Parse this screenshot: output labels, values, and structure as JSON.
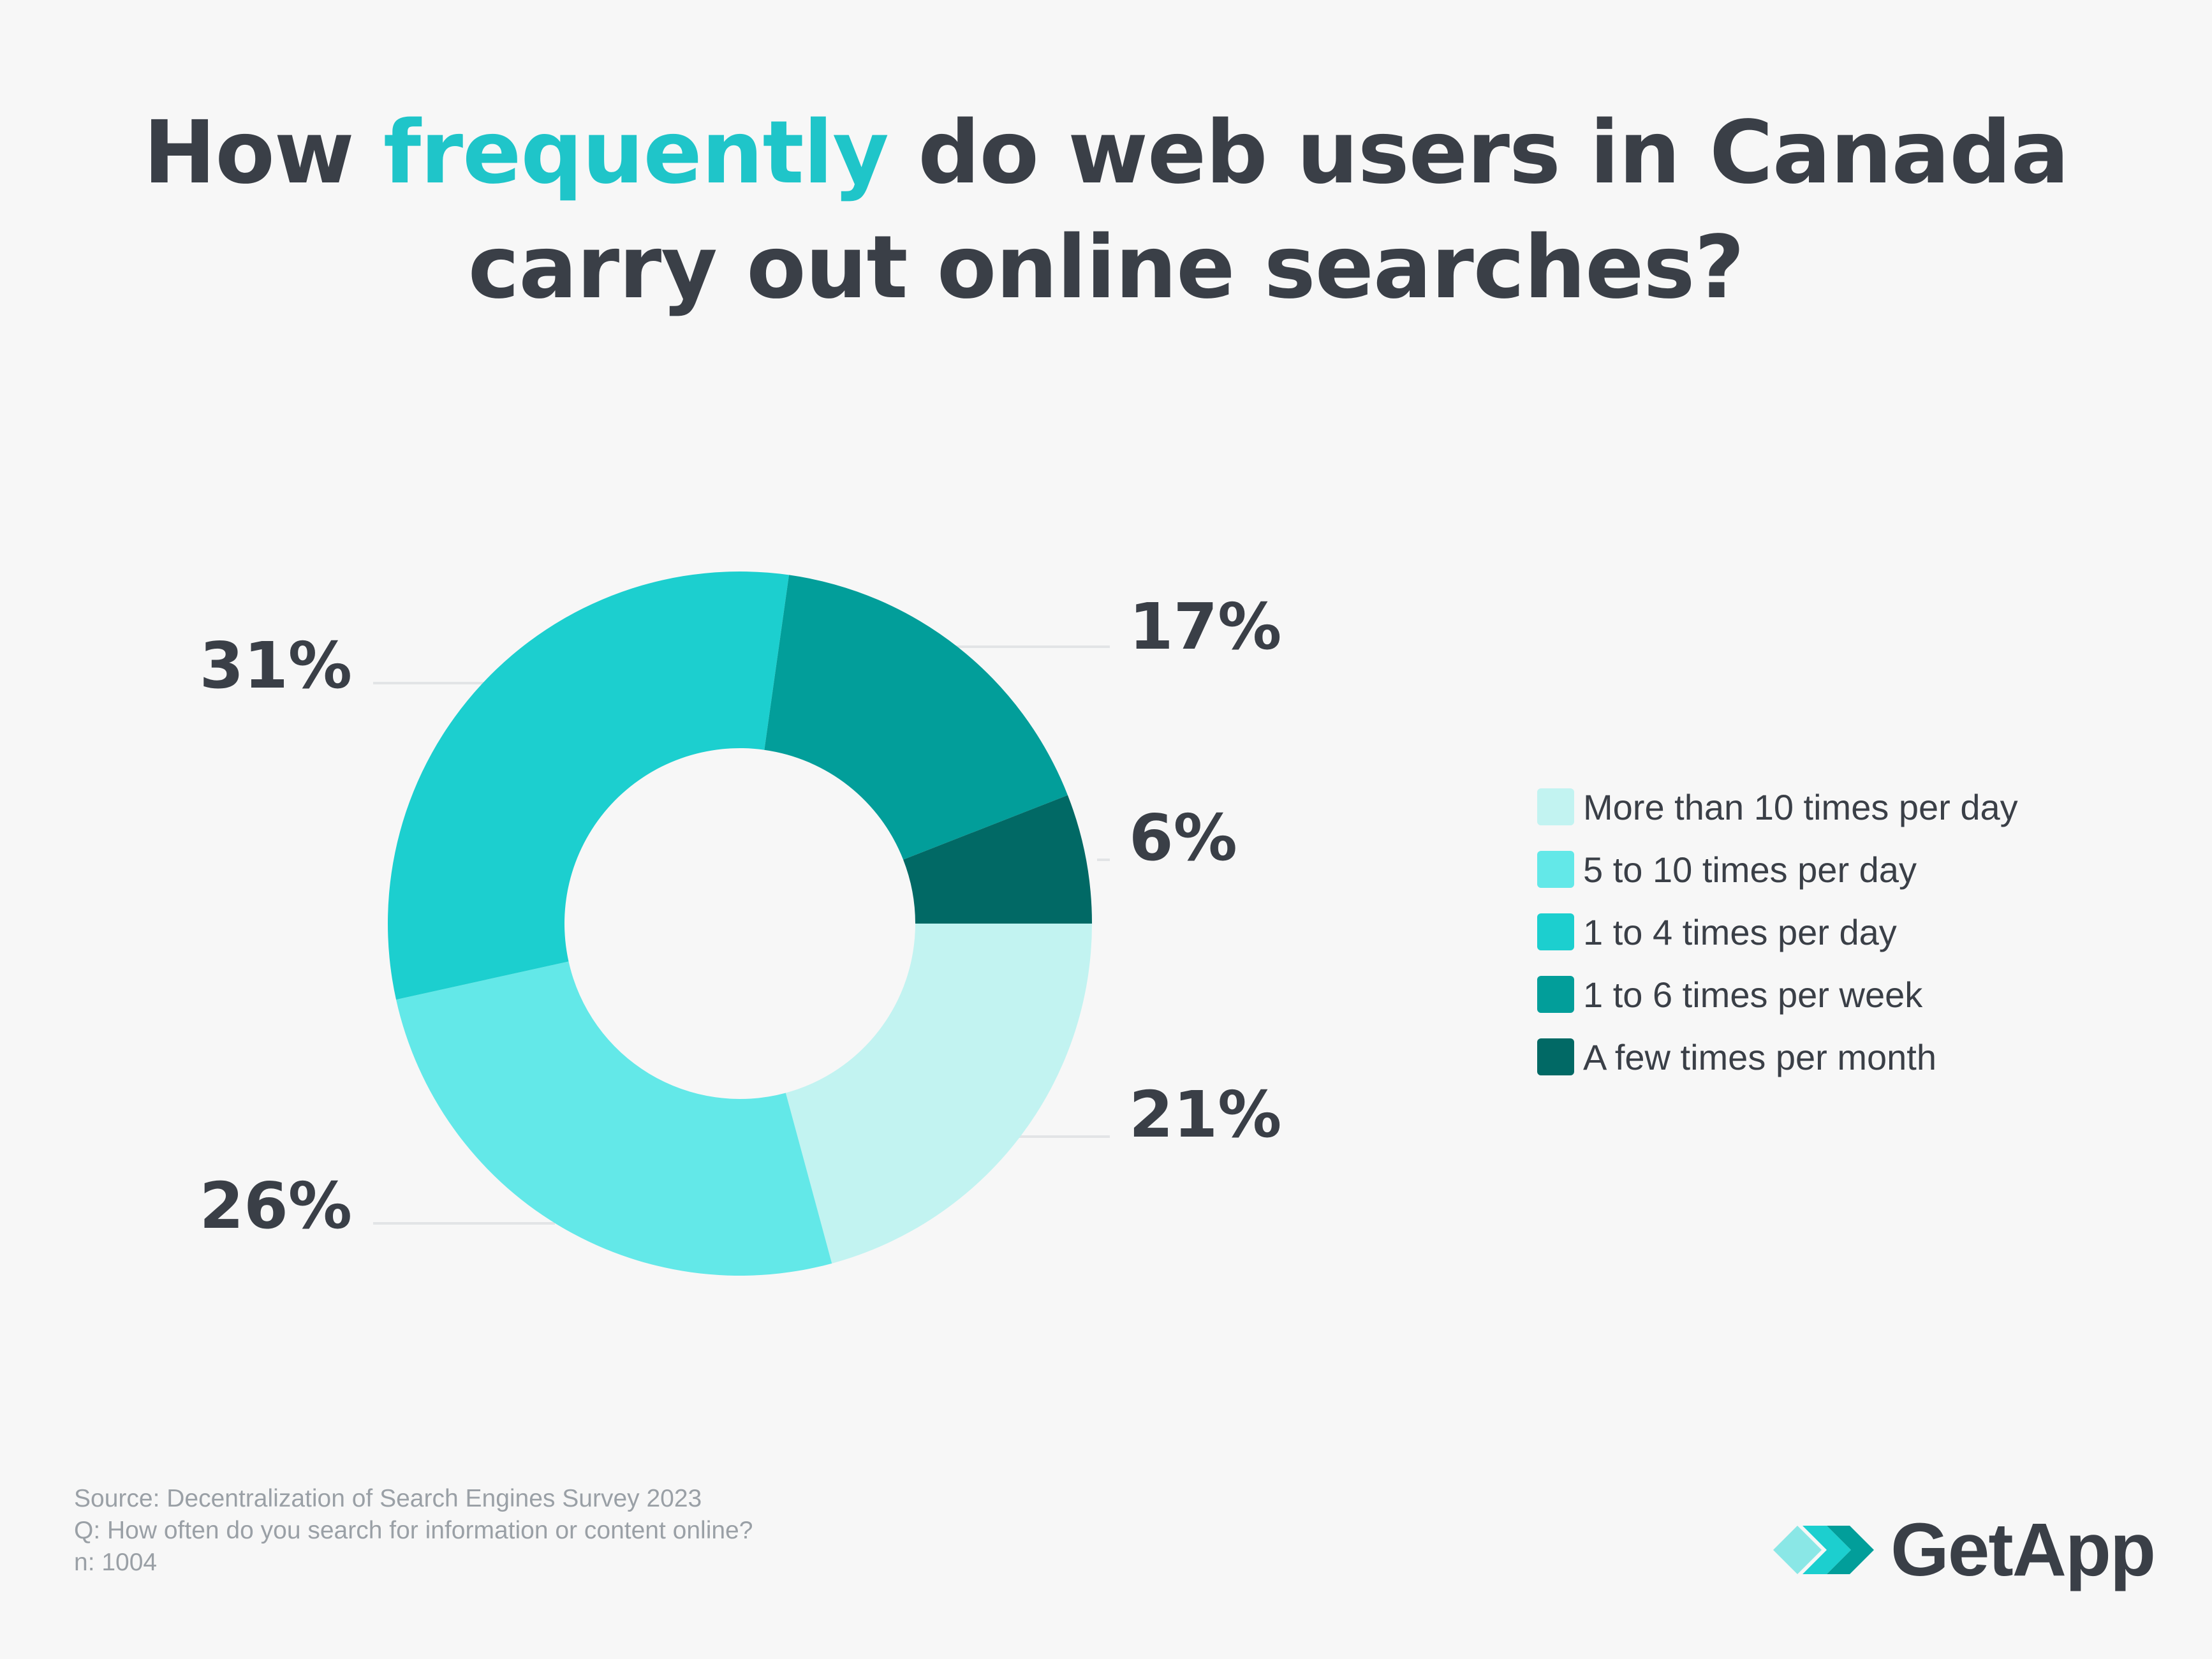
{
  "title": {
    "part1": "How ",
    "accent": "frequently",
    "part2": " do web users in Canada",
    "line2": "carry out online searches?"
  },
  "colors": {
    "accent": "#1fc5c9",
    "text": "#3a3f47",
    "background": "#f7f7f7"
  },
  "chart_data": {
    "type": "pie",
    "variant": "donut",
    "categories": [
      "More than 10 times per day",
      "5 to 10 times per day",
      "1 to 4 times per day",
      "1 to 6 times per week",
      "A few times per month"
    ],
    "values": [
      21,
      26,
      31,
      17,
      6
    ],
    "labels": [
      "21%",
      "26%",
      "31%",
      "17%",
      "6%"
    ],
    "colors": [
      "#c2f3f1",
      "#63e8e8",
      "#1ccfcf",
      "#029e9a",
      "#016965"
    ],
    "legend_position": "right"
  },
  "footer": {
    "source": "Source: Decentralization of Search Engines Survey 2023",
    "question": "Q: How often do you search for information or content online?",
    "n": "n: 1004"
  },
  "logo": {
    "text": "GetApp",
    "icon": "getapp-chevrons-icon"
  }
}
